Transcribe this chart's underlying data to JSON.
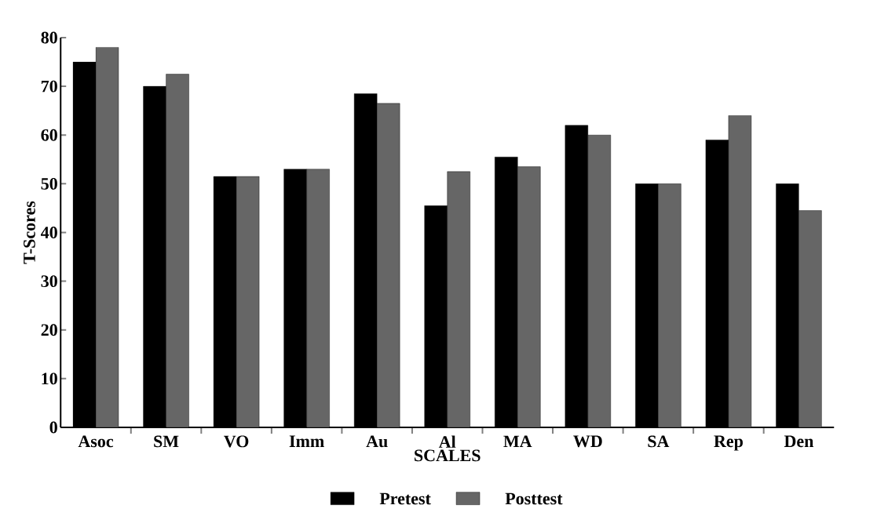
{
  "chart_data": {
    "type": "bar",
    "xlabel": "SCALES",
    "ylabel": "T-Scores",
    "categories": [
      "Asoc",
      "SM",
      "VO",
      "Imm",
      "Au",
      "Al",
      "MA",
      "WD",
      "SA",
      "Rep",
      "Den"
    ],
    "series": [
      {
        "name": "Pretest",
        "color": "#000000",
        "values": [
          75,
          70,
          51.5,
          53,
          68.5,
          45.5,
          55.5,
          62,
          50,
          59,
          50
        ]
      },
      {
        "name": "Posttest",
        "color": "#666666",
        "values": [
          78,
          72.5,
          51.5,
          53,
          66.5,
          52.5,
          53.5,
          60,
          50,
          64,
          44.5
        ]
      }
    ],
    "ylim": [
      0,
      80
    ],
    "yticks": [
      0,
      10,
      20,
      30,
      40,
      50,
      60,
      70,
      80
    ],
    "grid": false,
    "legend": "bottom"
  }
}
